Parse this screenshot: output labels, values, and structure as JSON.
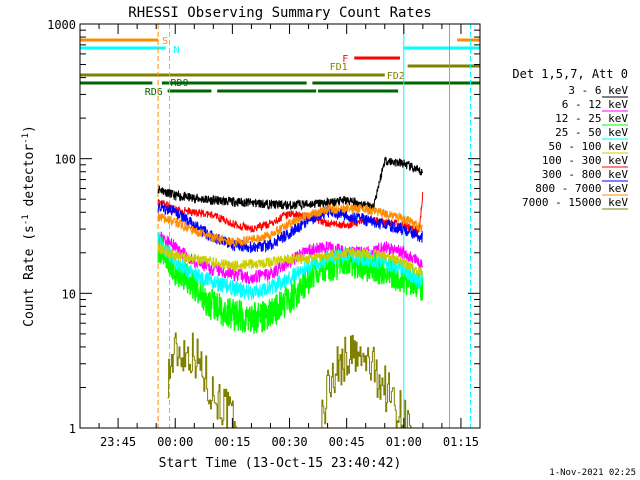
{
  "chart_data": {
    "type": "line",
    "title": "RHESSI Observing Summary Count Rates",
    "xlabel": "Start Time (13-Oct-15 23:40:42)",
    "ylabel_main": "Count Rate (s",
    "ylabel_sup1": "-1",
    "ylabel_mid": " detector",
    "ylabel_sup2": "-1",
    "ylabel_end": ")",
    "yscale": "log",
    "ylim": [
      1,
      1000
    ],
    "xlim_min": [
      -5,
      100
    ],
    "x_ticks": [
      {
        "m": 5,
        "label": "23:45"
      },
      {
        "m": 20,
        "label": "00:00"
      },
      {
        "m": 35,
        "label": "00:15"
      },
      {
        "m": 50,
        "label": "00:30"
      },
      {
        "m": 65,
        "label": "00:45"
      },
      {
        "m": 80,
        "label": "01:00"
      },
      {
        "m": 95,
        "label": "01:15"
      }
    ],
    "y_ticks": [
      {
        "v": 1,
        "label": "1"
      },
      {
        "v": 10,
        "label": "10"
      },
      {
        "v": 100,
        "label": "100"
      },
      {
        "v": 1000,
        "label": "1000"
      }
    ],
    "legend_title": "Det 1,5,7, Att 0",
    "series": [
      {
        "name": "3 - 6 keV",
        "color": "#000000",
        "seed": 11,
        "noise": 0.035,
        "values": [
          [
            15.5,
            60
          ],
          [
            20,
            53
          ],
          [
            30,
            49
          ],
          [
            40,
            47
          ],
          [
            50,
            45
          ],
          [
            60,
            47
          ],
          [
            65,
            49
          ],
          [
            70,
            45
          ],
          [
            72,
            44
          ],
          [
            75,
            97
          ],
          [
            80,
            92
          ],
          [
            85,
            78
          ]
        ]
      },
      {
        "name": "6 - 12 keV",
        "color": "#ff00ff",
        "seed": 23,
        "noise": 0.05,
        "values": [
          [
            15.5,
            27
          ],
          [
            20,
            22
          ],
          [
            25,
            17
          ],
          [
            30,
            15
          ],
          [
            35,
            14
          ],
          [
            40,
            13
          ],
          [
            45,
            14
          ],
          [
            50,
            17
          ],
          [
            55,
            21
          ],
          [
            60,
            22
          ],
          [
            65,
            20
          ],
          [
            70,
            20
          ],
          [
            75,
            22
          ],
          [
            80,
            20
          ],
          [
            85,
            16
          ]
        ]
      },
      {
        "name": "12 - 25 keV",
        "color": "#00ff00",
        "seed": 37,
        "noise": 0.12,
        "values": [
          [
            15.5,
            22
          ],
          [
            20,
            15
          ],
          [
            25,
            11
          ],
          [
            30,
            8
          ],
          [
            35,
            7
          ],
          [
            40,
            6.5
          ],
          [
            45,
            7
          ],
          [
            50,
            9
          ],
          [
            55,
            13
          ],
          [
            60,
            16
          ],
          [
            65,
            17
          ],
          [
            70,
            16
          ],
          [
            75,
            15
          ],
          [
            80,
            13
          ],
          [
            85,
            11
          ]
        ]
      },
      {
        "name": "25 - 50 keV",
        "color": "#00ffff",
        "seed": 41,
        "noise": 0.06,
        "values": [
          [
            15.5,
            25
          ],
          [
            20,
            17
          ],
          [
            25,
            14
          ],
          [
            30,
            12
          ],
          [
            35,
            11
          ],
          [
            40,
            10
          ],
          [
            45,
            11
          ],
          [
            50,
            13
          ],
          [
            55,
            16
          ],
          [
            60,
            18
          ],
          [
            65,
            19
          ],
          [
            70,
            18
          ],
          [
            75,
            17
          ],
          [
            80,
            15
          ],
          [
            85,
            12
          ]
        ]
      },
      {
        "name": "50 - 100 keV",
        "color": "#cccc00",
        "seed": 53,
        "noise": 0.04,
        "values": [
          [
            15.5,
            22
          ],
          [
            20,
            19
          ],
          [
            25,
            18
          ],
          [
            30,
            17
          ],
          [
            35,
            16
          ],
          [
            40,
            16.5
          ],
          [
            45,
            17
          ],
          [
            50,
            18
          ],
          [
            55,
            18
          ],
          [
            60,
            19
          ],
          [
            65,
            20
          ],
          [
            70,
            20
          ],
          [
            75,
            19
          ],
          [
            80,
            17
          ],
          [
            85,
            14
          ]
        ]
      },
      {
        "name": "100 - 300 keV",
        "color": "#ff0000",
        "seed": 67,
        "noise": 0.03,
        "values": [
          [
            15.5,
            48
          ],
          [
            20,
            42
          ],
          [
            30,
            38
          ],
          [
            35,
            33
          ],
          [
            40,
            30
          ],
          [
            45,
            33
          ],
          [
            50,
            39
          ],
          [
            55,
            37
          ],
          [
            60,
            33
          ],
          [
            65,
            32
          ],
          [
            70,
            35
          ],
          [
            75,
            34
          ],
          [
            80,
            32
          ],
          [
            84,
            29
          ],
          [
            85,
            55
          ]
        ]
      },
      {
        "name": "300 - 800 keV",
        "color": "#0000ff",
        "seed": 71,
        "noise": 0.045,
        "values": [
          [
            15.5,
            44
          ],
          [
            20,
            40
          ],
          [
            25,
            32
          ],
          [
            30,
            26
          ],
          [
            35,
            23
          ],
          [
            40,
            22
          ],
          [
            45,
            23
          ],
          [
            50,
            28
          ],
          [
            55,
            35
          ],
          [
            60,
            40
          ],
          [
            65,
            38
          ],
          [
            70,
            35
          ],
          [
            75,
            32
          ],
          [
            80,
            30
          ],
          [
            85,
            26
          ]
        ]
      },
      {
        "name": "800 - 7000 keV",
        "color": "#ff8c00",
        "seed": 83,
        "noise": 0.035,
        "values": [
          [
            15.5,
            37
          ],
          [
            20,
            34
          ],
          [
            25,
            29
          ],
          [
            30,
            26
          ],
          [
            35,
            24
          ],
          [
            40,
            25
          ],
          [
            45,
            27
          ],
          [
            50,
            33
          ],
          [
            55,
            38
          ],
          [
            60,
            42
          ],
          [
            65,
            43
          ],
          [
            70,
            42
          ],
          [
            75,
            39
          ],
          [
            80,
            36
          ],
          [
            85,
            30
          ]
        ]
      },
      {
        "name": "7000 - 15000 keV",
        "color": "#808000",
        "seed": 97,
        "noise": 0.0,
        "values": [
          [
            18,
            2.5
          ],
          [
            20,
            3.7
          ],
          [
            25,
            3.6
          ],
          [
            27,
            2.7
          ],
          [
            30,
            1.8
          ],
          [
            33,
            1.4
          ],
          [
            36,
            1.0
          ],
          [
            58,
            1.0
          ],
          [
            60,
            2.0
          ],
          [
            62,
            2.7
          ],
          [
            66,
            3.6
          ],
          [
            68,
            3.2
          ],
          [
            71,
            3.0
          ],
          [
            75,
            2.0
          ],
          [
            79,
            1.3
          ],
          [
            82,
            1.0
          ],
          [
            85,
            1.0
          ]
        ]
      }
    ],
    "flag_bars": [
      {
        "label": "S",
        "color": "#ff8c00",
        "y": 40,
        "segments": [
          [
            -5,
            15.5
          ],
          [
            94,
            100
          ]
        ]
      },
      {
        "label": "N",
        "color": "#00ffff",
        "y": 48,
        "segments": [
          [
            -5,
            17.5
          ],
          [
            80,
            100
          ]
        ]
      },
      {
        "label": "F",
        "color": "#ff0000",
        "y": 58,
        "segments": [
          [
            67,
            79
          ]
        ]
      },
      {
        "label": "FD1",
        "color": "#808000",
        "y": 66,
        "segments": [
          [
            81,
            100
          ]
        ]
      },
      {
        "label": "FD2",
        "color": "#808000",
        "y": 75,
        "segments": [
          [
            -5,
            75
          ]
        ]
      },
      {
        "label": "RD0",
        "color": "#006400",
        "y": 83,
        "segments": [
          [
            -5,
            14
          ],
          [
            16.5,
            54.5
          ],
          [
            56,
            100
          ]
        ]
      },
      {
        "label": "RD6",
        "color": "#006400",
        "y": 91,
        "segments": [
          [
            18,
            29.5
          ],
          [
            31,
            57
          ],
          [
            57.5,
            78.5
          ]
        ]
      }
    ],
    "vlines": [
      {
        "m": -5,
        "color": "#00ffff",
        "dashed": false
      },
      {
        "m": 15.5,
        "color": "#ff8c00",
        "dashed": true
      },
      {
        "m": 18.5,
        "color": "#00ffff",
        "dashed": true
      },
      {
        "m": 80,
        "color": "#00ffff",
        "dashed": false
      },
      {
        "m": 92,
        "color": "#ff8c00",
        "dashed": false
      },
      {
        "m": 97.5,
        "color": "#00ffff",
        "dashed": true
      }
    ],
    "footer": "1-Nov-2021 02:25"
  }
}
